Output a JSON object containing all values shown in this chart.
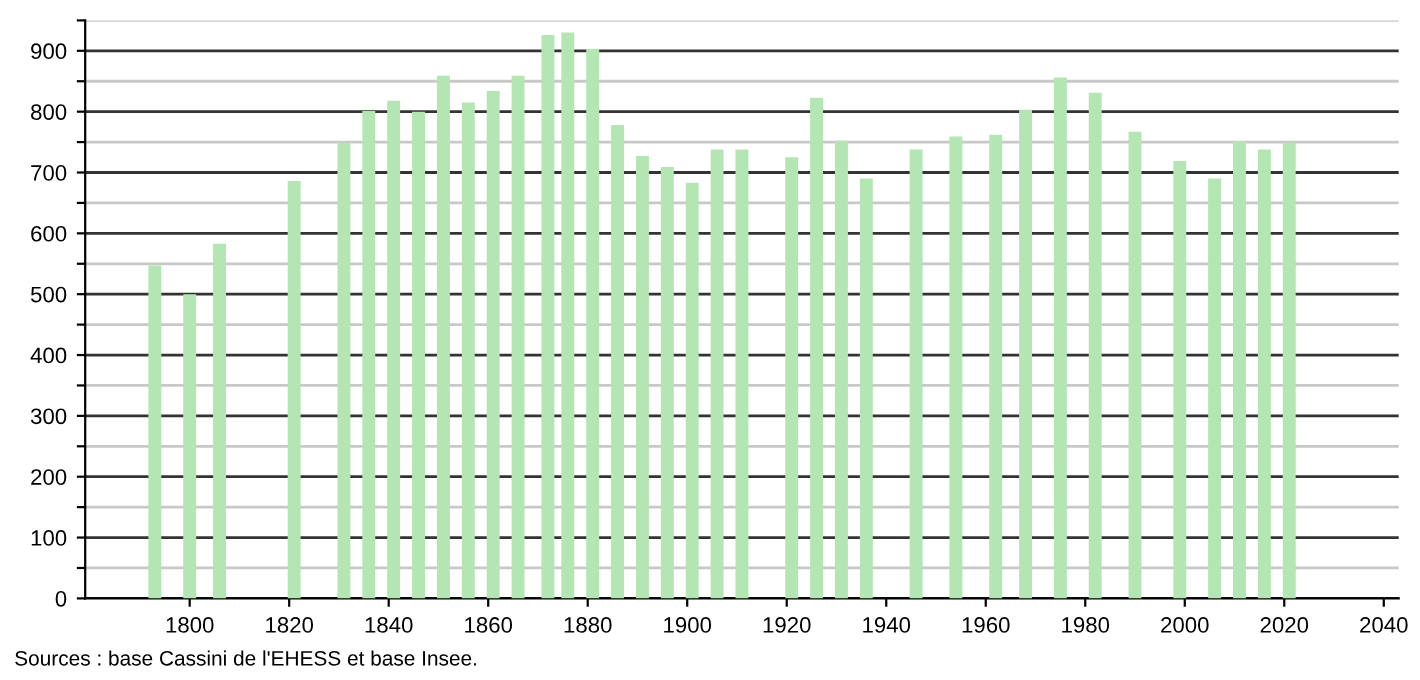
{
  "chart_data": {
    "type": "bar",
    "x": [
      1793,
      1800,
      1806,
      1821,
      1831,
      1836,
      1841,
      1846,
      1851,
      1856,
      1861,
      1866,
      1872,
      1876,
      1881,
      1886,
      1891,
      1896,
      1901,
      1906,
      1911,
      1921,
      1926,
      1931,
      1936,
      1946,
      1954,
      1962,
      1968,
      1975,
      1982,
      1990,
      1999,
      2006,
      2011,
      2016,
      2021
    ],
    "values": [
      547,
      500,
      583,
      686,
      749,
      801,
      818,
      800,
      859,
      815,
      834,
      859,
      926,
      930,
      903,
      778,
      727,
      709,
      683,
      738,
      738,
      725,
      823,
      752,
      690,
      738,
      759,
      762,
      803,
      856,
      831,
      767,
      719,
      690,
      751,
      738,
      749
    ],
    "color": "#b3e6b3",
    "xlim": [
      1779,
      2043
    ],
    "xticks": [
      1800,
      1820,
      1840,
      1860,
      1880,
      1900,
      1920,
      1940,
      1960,
      1980,
      2000,
      2020,
      2040
    ],
    "ylim": [
      0,
      950
    ],
    "yticks": [
      0,
      {
        "value": 50,
        "label": null
      },
      100,
      {
        "value": 150,
        "label": null
      },
      200,
      {
        "value": 250,
        "label": null
      },
      300,
      {
        "value": 350,
        "label": null
      },
      400,
      {
        "value": 450,
        "label": null
      },
      500,
      {
        "value": 550,
        "label": null
      },
      600,
      {
        "value": 650,
        "label": null
      },
      700,
      {
        "value": 750,
        "label": null
      },
      800,
      {
        "value": 850,
        "label": null
      },
      900,
      {
        "value": 950,
        "label": null
      }
    ],
    "grid": "y",
    "annotations": [
      "Sources : base Cassini de l'EHESS et base Insee."
    ]
  }
}
